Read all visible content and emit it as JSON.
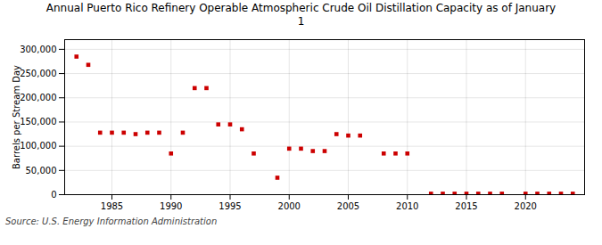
{
  "chart_data": {
    "type": "scatter",
    "title": "Annual Puerto Rico Refinery Operable Atmospheric Crude Oil Distillation Capacity as of January\n1",
    "ylabel": "Barrels per Stream Day",
    "source": "Source: U.S. Energy Information Administration",
    "x": [
      1982,
      1983,
      1984,
      1985,
      1986,
      1987,
      1988,
      1989,
      1990,
      1991,
      1992,
      1993,
      1994,
      1995,
      1996,
      1997,
      1999,
      2000,
      2001,
      2002,
      2003,
      2004,
      2005,
      2006,
      2008,
      2009,
      2010,
      2012,
      2013,
      2014,
      2015,
      2016,
      2017,
      2018,
      2020,
      2021,
      2022,
      2023,
      2024
    ],
    "values": [
      285000,
      268000,
      128000,
      128000,
      128000,
      125000,
      128000,
      128000,
      85000,
      128000,
      220000,
      220000,
      145000,
      145000,
      135000,
      85000,
      35000,
      95000,
      95000,
      90000,
      90000,
      125000,
      122000,
      122000,
      85000,
      85000,
      85000,
      2000,
      2000,
      2000,
      2000,
      2000,
      2000,
      2000,
      2000,
      2000,
      2000,
      2000,
      2000
    ],
    "color": "#cc0000",
    "marker": "square",
    "xlim": [
      1981,
      2025
    ],
    "xticks": [
      1985,
      1990,
      1995,
      2000,
      2005,
      2010,
      2015,
      2020
    ],
    "ylim": [
      0,
      320000
    ],
    "yticks": [
      0,
      {
        "value": 50000,
        "label": "50,000"
      },
      {
        "value": 100000,
        "label": "100,000"
      },
      {
        "value": 150000,
        "label": "150,000"
      },
      {
        "value": 200000,
        "label": "200,000"
      },
      {
        "value": 250000,
        "label": "250,000"
      },
      {
        "value": 300000,
        "label": "300,000"
      }
    ],
    "grid": true
  }
}
